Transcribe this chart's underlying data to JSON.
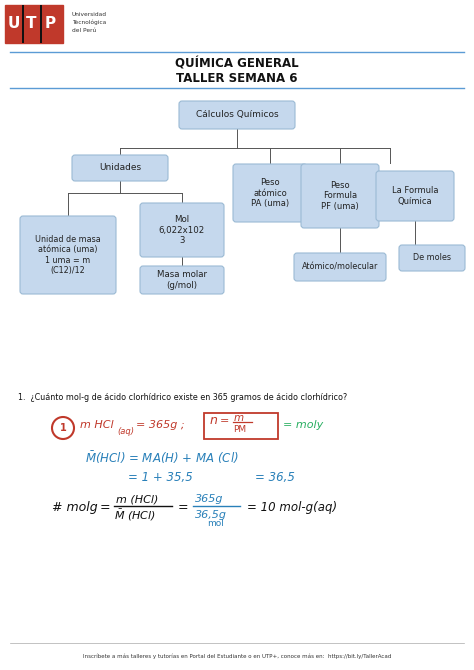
{
  "title1": "QUÍMICA GENERAL",
  "title2": "TALLER SEMANA 6",
  "box_color": "#c5d8ed",
  "box_edge": "#9bbad4",
  "bg_color": "#ffffff",
  "header_line_color": "#5b9bd5",
  "footer_text": "Inscríbete a más talleres y tutorías en Portal del Estudiante o en UTP+, conoce más en:  https://bit.ly/TallerAcad",
  "question": "1.  ¿Cuánto mol-g de ácido clorhídrico existe en 365 gramos de ácido clorhídrico?"
}
